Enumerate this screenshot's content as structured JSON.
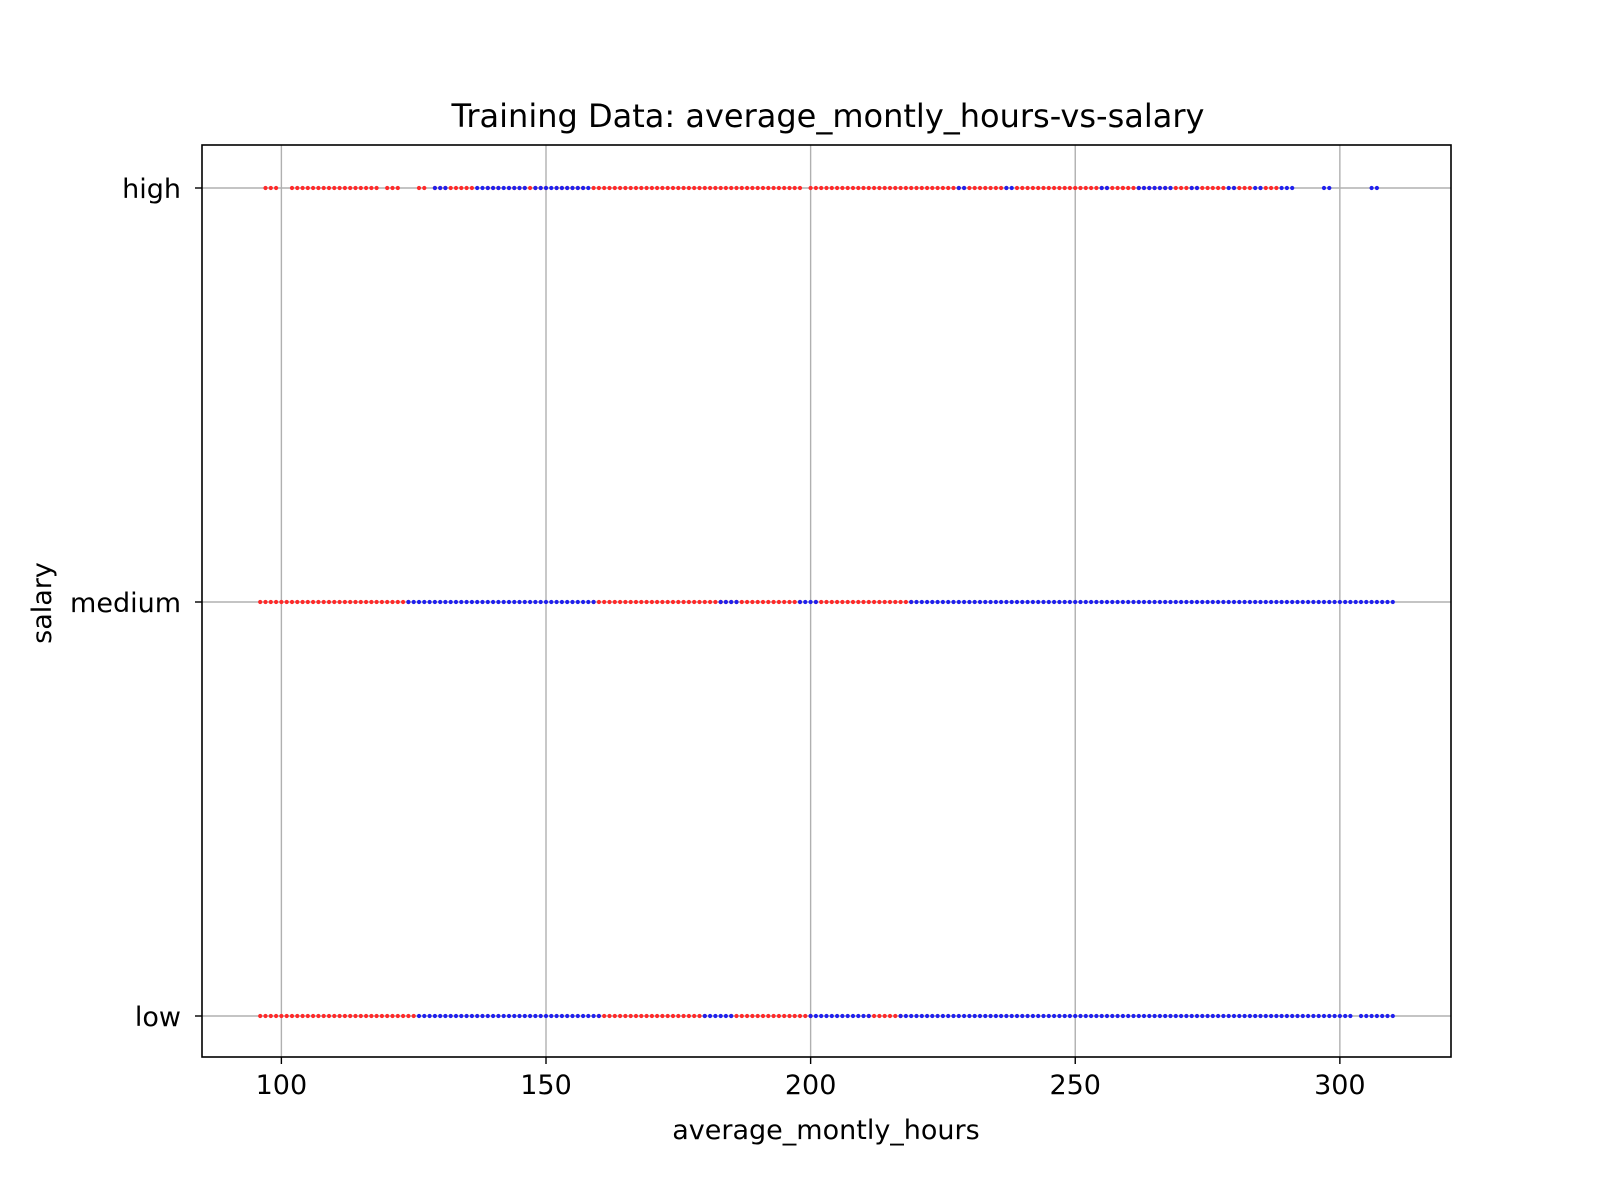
{
  "chart_data": {
    "type": "scatter",
    "title": "Training Data: average_montly_hours-vs-salary",
    "xlabel": "average_montly_hours",
    "ylabel": "salary",
    "xlim": [
      85,
      321
    ],
    "xticks": [
      100,
      150,
      200,
      250,
      300
    ],
    "categories": [
      "low",
      "medium",
      "high"
    ],
    "grid": true,
    "colors": {
      "red": "#ff2a2a",
      "blue": "#2020ee",
      "grid": "#b0b0b0"
    },
    "series": [
      {
        "color": "red",
        "points": [
          {
            "y": "high",
            "ranges": [
              [
                97,
                99
              ],
              [
                102,
                111
              ],
              [
                112,
                115
              ],
              [
                116,
                118
              ],
              [
                120,
                122
              ],
              [
                126,
                127
              ],
              [
                129,
                136
              ],
              [
                139,
                141
              ],
              [
                143,
                150
              ],
              [
                152,
                157
              ],
              [
                159,
                198
              ],
              [
                200,
                227
              ],
              [
                228,
                237
              ],
              [
                239,
                246
              ],
              [
                247,
                259
              ],
              [
                259,
                270
              ],
              [
                271,
                278
              ],
              [
                280,
                283
              ],
              [
                285,
                288
              ]
            ]
          },
          {
            "y": "medium",
            "ranges": [
              [
                96,
                124
              ],
              [
                159,
                183
              ],
              [
                183,
                198
              ],
              [
                201,
                219
              ]
            ]
          },
          {
            "y": "low",
            "ranges": [
              [
                96,
                125
              ],
              [
                160,
                180
              ],
              [
                185,
                200
              ],
              [
                211,
                217
              ]
            ]
          }
        ]
      },
      {
        "color": "blue",
        "points": [
          {
            "y": "high",
            "ranges": [
              [
                129,
                131
              ],
              [
                137,
                146
              ],
              [
                148,
                158
              ],
              [
                228,
                229
              ],
              [
                237,
                238
              ],
              [
                255,
                256
              ],
              [
                262,
                268
              ],
              [
                272,
                273
              ],
              [
                279,
                280
              ],
              [
                284,
                285
              ],
              [
                289,
                291
              ],
              [
                297,
                298
              ],
              [
                306,
                307
              ]
            ]
          },
          {
            "y": "medium",
            "ranges": [
              [
                124,
                159
              ],
              [
                183,
                186
              ],
              [
                198,
                201
              ],
              [
                219,
                310
              ]
            ]
          },
          {
            "y": "low",
            "ranges": [
              [
                126,
                160
              ],
              [
                180,
                185
              ],
              [
                200,
                211
              ],
              [
                217,
                302
              ],
              [
                304,
                310
              ]
            ]
          }
        ]
      }
    ]
  }
}
